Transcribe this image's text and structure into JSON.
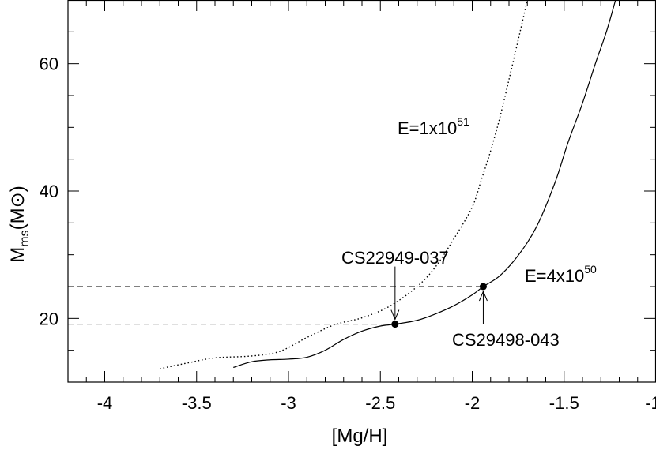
{
  "chart_data": {
    "type": "line",
    "xlabel": "[Mg/H]",
    "ylabel": {
      "main": "M",
      "sub": "ms",
      "unit_open": "(M",
      "unit_symbol": "⊙",
      "unit_close": ")"
    },
    "xlim": [
      -4.2,
      -1.0
    ],
    "ylim": [
      10,
      70
    ],
    "x_ticks": [
      -4,
      -3.5,
      -3,
      -2.5,
      -2,
      -1.5,
      -1
    ],
    "x_tick_labels": [
      "-4",
      "-3.5",
      "-3",
      "-2.5",
      "-2",
      "-1.5",
      "-1"
    ],
    "x_minor_step": 0.1,
    "y_ticks": [
      20,
      40,
      60
    ],
    "y_tick_labels": [
      "20",
      "40",
      "60"
    ],
    "y_minor_step": 5,
    "grid": false,
    "series": [
      {
        "name": "E=1x10^51",
        "style": "dotted",
        "x": [
          -3.7,
          -3.55,
          -3.4,
          -3.2,
          -3.05,
          -2.9,
          -2.75,
          -2.6,
          -2.45,
          -2.3,
          -2.2,
          -2.1,
          -2.0,
          -1.95,
          -1.9,
          -1.85,
          -1.8,
          -1.75,
          -1.7
        ],
        "y": [
          12.1,
          13.0,
          13.8,
          14.1,
          14.8,
          17.0,
          19.0,
          20.1,
          21.9,
          25.0,
          28.1,
          32.5,
          37.5,
          41.8,
          46.3,
          51.5,
          57.5,
          63.7,
          70.0
        ]
      },
      {
        "name": "E=4x10^50",
        "style": "solid",
        "x": [
          -3.3,
          -3.2,
          -3.1,
          -3.0,
          -2.9,
          -2.8,
          -2.7,
          -2.6,
          -2.5,
          -2.42,
          -2.3,
          -2.2,
          -2.1,
          -2.0,
          -1.94,
          -1.85,
          -1.75,
          -1.65,
          -1.55,
          -1.48,
          -1.4,
          -1.33,
          -1.27,
          -1.22
        ],
        "y": [
          12.3,
          13.2,
          13.5,
          13.6,
          13.9,
          15.0,
          16.7,
          18.0,
          18.8,
          19.1,
          19.7,
          20.7,
          22.0,
          23.7,
          25.0,
          26.7,
          29.9,
          34.4,
          41.3,
          47.5,
          53.8,
          60.0,
          65.0,
          70.0
        ]
      }
    ],
    "points": [
      {
        "name": "CS22949-037",
        "x": -2.42,
        "y": 19.1
      },
      {
        "name": "CS29498-043",
        "x": -1.94,
        "y": 25.0
      }
    ],
    "dashed_guides": [
      {
        "y": 19.1,
        "x_end": -2.42
      },
      {
        "y": 25.0,
        "x_end": -1.94
      }
    ],
    "annotations": [
      {
        "target": "CS22949-037",
        "label": "CS22949-037",
        "arrow": "down"
      },
      {
        "target": "CS29498-043",
        "label": "CS29498-043",
        "arrow": "up"
      }
    ],
    "curve_labels": [
      {
        "series": "E=1x10^51",
        "base": "E=1x10",
        "exp": "51"
      },
      {
        "series": "E=4x10^50",
        "base": "E=4x10",
        "exp": "50"
      }
    ]
  }
}
